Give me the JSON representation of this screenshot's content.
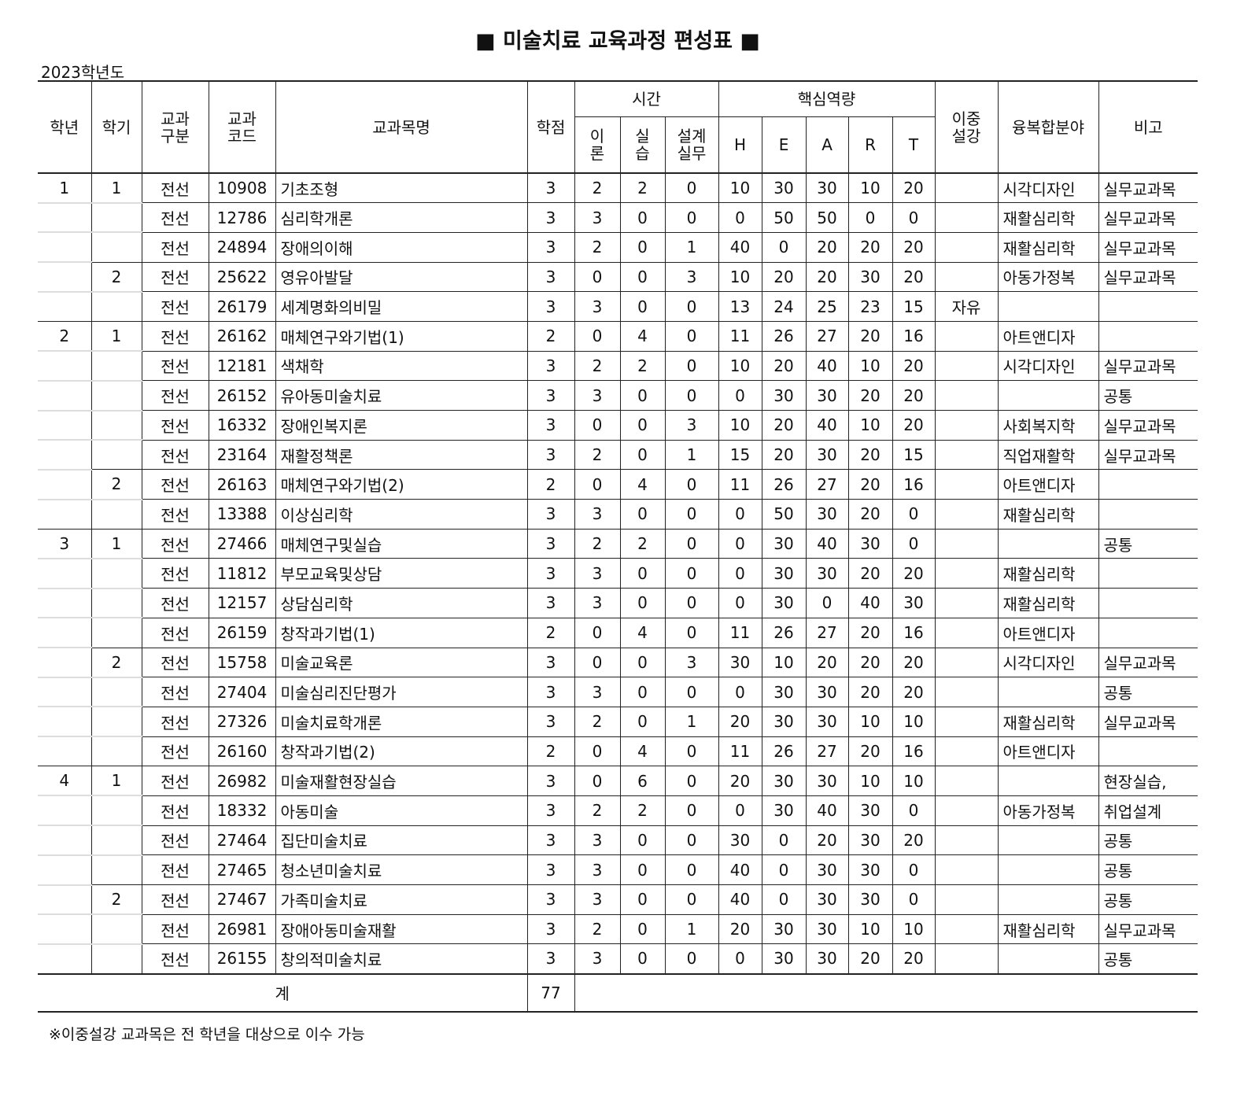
{
  "title": "■ 미술치료 교육과정 편성표 ■",
  "academic_year": "2023학년도",
  "headers": {
    "year": "학년",
    "semester": "학기",
    "type": "교과\n구분",
    "code": "교과\n코드",
    "name": "교과목명",
    "credit": "학점",
    "time": "시간",
    "theory": "이\n론",
    "practice": "실\n습",
    "design": "설계\n실무",
    "core": "핵심역량",
    "H": "H",
    "E": "E",
    "A": "A",
    "R": "R",
    "T": "T",
    "dual": "이중\n설강",
    "field": "융복합분야",
    "note": "비고"
  },
  "rows": [
    [
      "1",
      "1",
      "전선",
      "10908",
      "기초조형",
      "3",
      "2",
      "2",
      "0",
      "10",
      "30",
      "30",
      "10",
      "20",
      "",
      "시각디자인",
      "실무교과목"
    ],
    [
      "",
      "",
      "전선",
      "12786",
      "심리학개론",
      "3",
      "3",
      "0",
      "0",
      "0",
      "50",
      "50",
      "0",
      "0",
      "",
      "재활심리학",
      "실무교과목"
    ],
    [
      "",
      "",
      "전선",
      "24894",
      "장애의이해",
      "3",
      "2",
      "0",
      "1",
      "40",
      "0",
      "20",
      "20",
      "20",
      "",
      "재활심리학",
      "실무교과목"
    ],
    [
      "",
      "2",
      "전선",
      "25622",
      "영유아발달",
      "3",
      "0",
      "0",
      "3",
      "10",
      "20",
      "20",
      "30",
      "20",
      "",
      "아동가정복",
      "실무교과목"
    ],
    [
      "",
      "",
      "전선",
      "26179",
      "세계명화의비밀",
      "3",
      "3",
      "0",
      "0",
      "13",
      "24",
      "25",
      "23",
      "15",
      "자유",
      "",
      ""
    ],
    [
      "2",
      "1",
      "전선",
      "26162",
      "매체연구와기법(1)",
      "2",
      "0",
      "4",
      "0",
      "11",
      "26",
      "27",
      "20",
      "16",
      "",
      "아트앤디자",
      ""
    ],
    [
      "",
      "",
      "전선",
      "12181",
      "색채학",
      "3",
      "2",
      "2",
      "0",
      "10",
      "20",
      "40",
      "10",
      "20",
      "",
      "시각디자인",
      "실무교과목"
    ],
    [
      "",
      "",
      "전선",
      "26152",
      "유아동미술치료",
      "3",
      "3",
      "0",
      "0",
      "0",
      "30",
      "30",
      "20",
      "20",
      "",
      "",
      "공통"
    ],
    [
      "",
      "",
      "전선",
      "16332",
      "장애인복지론",
      "3",
      "0",
      "0",
      "3",
      "10",
      "20",
      "40",
      "10",
      "20",
      "",
      "사회복지학",
      "실무교과목"
    ],
    [
      "",
      "",
      "전선",
      "23164",
      "재활정책론",
      "3",
      "2",
      "0",
      "1",
      "15",
      "20",
      "30",
      "20",
      "15",
      "",
      "직업재활학",
      "실무교과목"
    ],
    [
      "",
      "2",
      "전선",
      "26163",
      "매체연구와기법(2)",
      "2",
      "0",
      "4",
      "0",
      "11",
      "26",
      "27",
      "20",
      "16",
      "",
      "아트앤디자",
      ""
    ],
    [
      "",
      "",
      "전선",
      "13388",
      "이상심리학",
      "3",
      "3",
      "0",
      "0",
      "0",
      "50",
      "30",
      "20",
      "0",
      "",
      "재활심리학",
      ""
    ],
    [
      "3",
      "1",
      "전선",
      "27466",
      "매체연구및실습",
      "3",
      "2",
      "2",
      "0",
      "0",
      "30",
      "40",
      "30",
      "0",
      "",
      "",
      "공통"
    ],
    [
      "",
      "",
      "전선",
      "11812",
      "부모교육및상담",
      "3",
      "3",
      "0",
      "0",
      "0",
      "30",
      "30",
      "20",
      "20",
      "",
      "재활심리학",
      ""
    ],
    [
      "",
      "",
      "전선",
      "12157",
      "상담심리학",
      "3",
      "3",
      "0",
      "0",
      "0",
      "30",
      "0",
      "40",
      "30",
      "",
      "재활심리학",
      ""
    ],
    [
      "",
      "",
      "전선",
      "26159",
      "창작과기법(1)",
      "2",
      "0",
      "4",
      "0",
      "11",
      "26",
      "27",
      "20",
      "16",
      "",
      "아트앤디자",
      ""
    ],
    [
      "",
      "2",
      "전선",
      "15758",
      "미술교육론",
      "3",
      "0",
      "0",
      "3",
      "30",
      "10",
      "20",
      "20",
      "20",
      "",
      "시각디자인",
      "실무교과목"
    ],
    [
      "",
      "",
      "전선",
      "27404",
      "미술심리진단평가",
      "3",
      "3",
      "0",
      "0",
      "0",
      "30",
      "30",
      "20",
      "20",
      "",
      "",
      "공통"
    ],
    [
      "",
      "",
      "전선",
      "27326",
      "미술치료학개론",
      "3",
      "2",
      "0",
      "1",
      "20",
      "30",
      "30",
      "10",
      "10",
      "",
      "재활심리학",
      "실무교과목"
    ],
    [
      "",
      "",
      "전선",
      "26160",
      "창작과기법(2)",
      "2",
      "0",
      "4",
      "0",
      "11",
      "26",
      "27",
      "20",
      "16",
      "",
      "아트앤디자",
      ""
    ],
    [
      "4",
      "1",
      "전선",
      "26982",
      "미술재활현장실습",
      "3",
      "0",
      "6",
      "0",
      "20",
      "30",
      "30",
      "10",
      "10",
      "",
      "",
      "현장실습,"
    ],
    [
      "",
      "",
      "전선",
      "18332",
      "아동미술",
      "3",
      "2",
      "2",
      "0",
      "0",
      "30",
      "40",
      "30",
      "0",
      "",
      "아동가정복",
      "취업설계"
    ],
    [
      "",
      "",
      "전선",
      "27464",
      "집단미술치료",
      "3",
      "3",
      "0",
      "0",
      "30",
      "0",
      "20",
      "30",
      "20",
      "",
      "",
      "공통"
    ],
    [
      "",
      "",
      "전선",
      "27465",
      "청소년미술치료",
      "3",
      "3",
      "0",
      "0",
      "40",
      "0",
      "30",
      "30",
      "0",
      "",
      "",
      "공통"
    ],
    [
      "",
      "2",
      "전선",
      "27467",
      "가족미술치료",
      "3",
      "3",
      "0",
      "0",
      "40",
      "0",
      "30",
      "30",
      "0",
      "",
      "",
      "공통"
    ],
    [
      "",
      "",
      "전선",
      "26981",
      "장애아동미술재활",
      "3",
      "2",
      "0",
      "1",
      "20",
      "30",
      "30",
      "10",
      "10",
      "",
      "재활심리학",
      "실무교과목"
    ],
    [
      "",
      "",
      "전선",
      "26155",
      "창의적미술치료",
      "3",
      "3",
      "0",
      "0",
      "0",
      "30",
      "30",
      "20",
      "20",
      "",
      "",
      "공통"
    ]
  ],
  "total": {
    "label": "계",
    "credit": "77"
  },
  "footnote": "※이중설강 교과목은 전 학년을 대상으로 이수 가능"
}
